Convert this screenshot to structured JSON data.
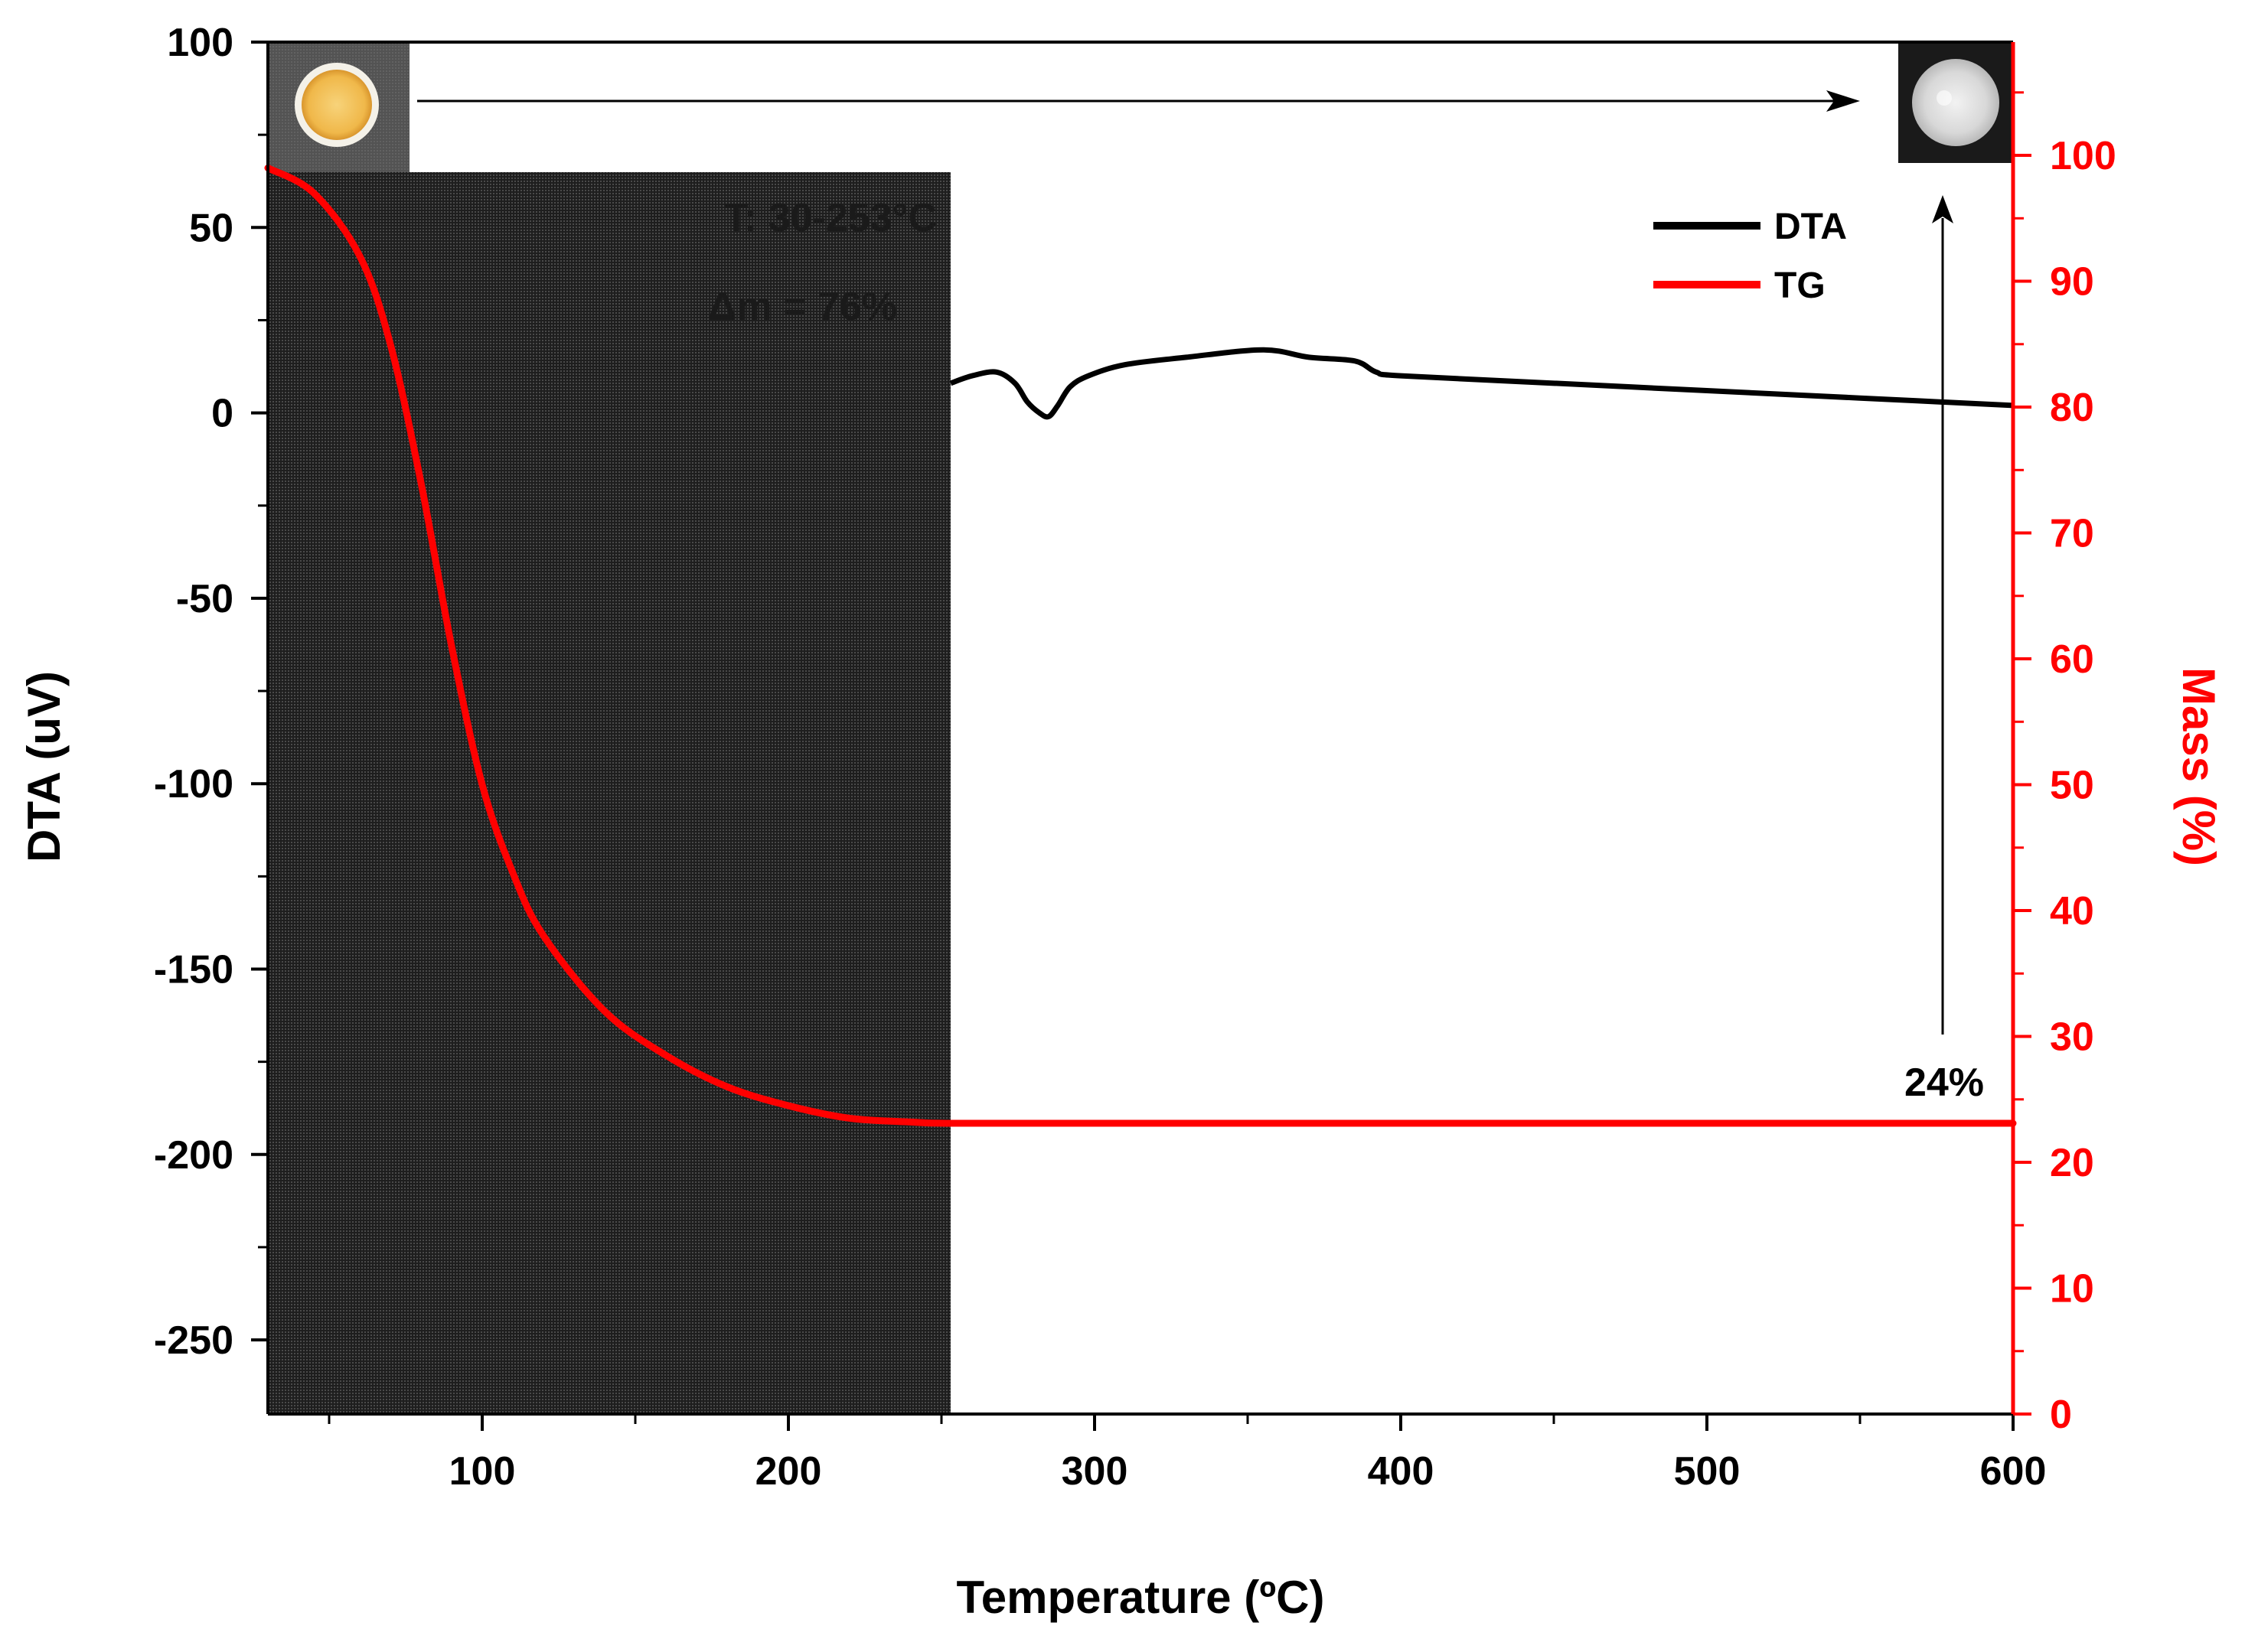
{
  "chart_data": {
    "type": "line",
    "title": "",
    "xlabel": "Temperature (ºC)",
    "ylabel_left": "DTA (uV)",
    "ylabel_right": "Mass (%)",
    "xlim": [
      30,
      600
    ],
    "ylim_left": [
      -270,
      100
    ],
    "ylim_right": [
      0,
      109
    ],
    "x_ticks": [
      100,
      200,
      300,
      400,
      500,
      600
    ],
    "y_left_ticks": [
      100,
      50,
      0,
      -50,
      -100,
      -150,
      -200,
      -250
    ],
    "y_right_ticks": [
      100,
      90,
      80,
      70,
      60,
      50,
      40,
      30,
      20,
      10,
      0
    ],
    "legend": [
      {
        "name": "DTA",
        "color": "#000000"
      },
      {
        "name": "TG",
        "color": "#ff0000"
      }
    ],
    "shaded_region": {
      "x_start": 30,
      "x_end": 253,
      "label_range": "T: 30-253°C",
      "label_mass": "Δm = 76%"
    },
    "annotation_residual": "24%",
    "series": [
      {
        "name": "DTA",
        "axis": "left",
        "color": "#000000",
        "x": [
          253,
          260,
          268,
          274,
          278,
          282,
          285,
          288,
          292,
          298,
          310,
          330,
          355,
          370,
          385,
          392,
          400,
          450,
          500,
          550,
          600
        ],
        "y": [
          8,
          10,
          11,
          8,
          3,
          0,
          -1,
          2,
          7,
          10,
          13,
          15,
          17,
          15,
          14,
          11,
          10,
          8,
          6,
          4,
          2
        ]
      },
      {
        "name": "TG",
        "axis": "right",
        "color": "#ff0000",
        "x": [
          30,
          45,
          60,
          70,
          80,
          90,
          100,
          110,
          120,
          140,
          160,
          180,
          200,
          220,
          240,
          253,
          300,
          400,
          500,
          600
        ],
        "y": [
          99,
          97,
          92,
          85,
          74,
          61,
          50,
          43,
          38,
          32,
          28.5,
          26,
          24.5,
          23.5,
          23.2,
          23.1,
          23.1,
          23.1,
          23.1,
          23.1
        ]
      }
    ]
  },
  "colors": {
    "tg": "#ff0000",
    "dta": "#000000",
    "shade": "#2b2b2b"
  }
}
